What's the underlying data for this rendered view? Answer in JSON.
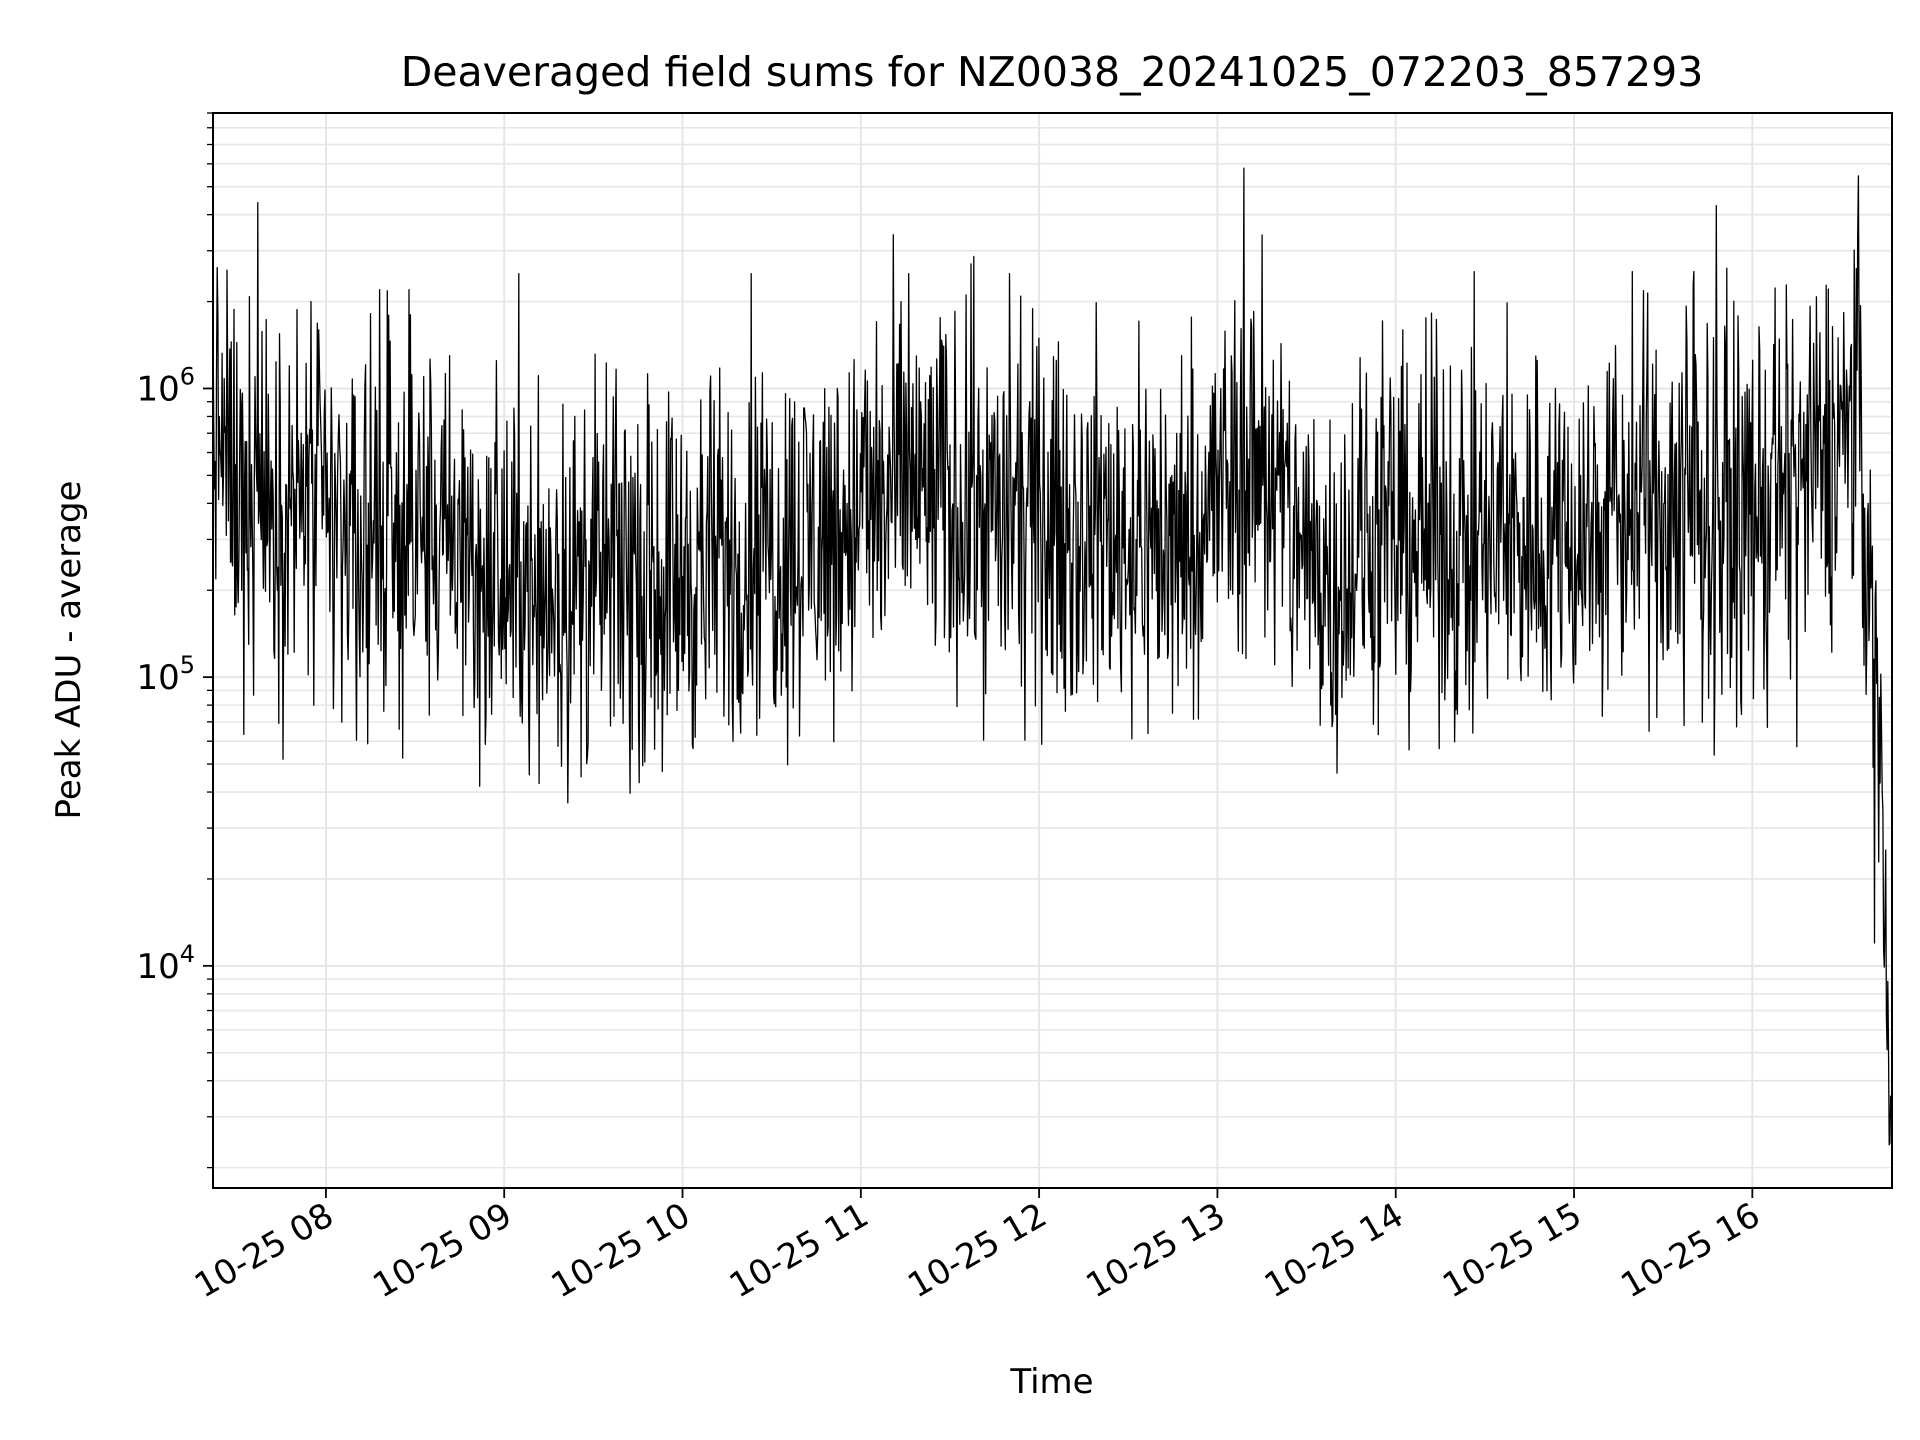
{
  "chart_data": {
    "type": "line",
    "title": "Deaveraged field sums for NZ0038_20241025_072203_857293",
    "xlabel": "Time",
    "ylabel": "Peak ADU - average",
    "x_axis": {
      "kind": "datetime",
      "range": [
        "2024-10-25 07:22",
        "2024-10-25 16:47"
      ],
      "ticks": [
        {
          "value": "2024-10-25 08:00",
          "label": "10-25 08"
        },
        {
          "value": "2024-10-25 09:00",
          "label": "10-25 09"
        },
        {
          "value": "2024-10-25 10:00",
          "label": "10-25 10"
        },
        {
          "value": "2024-10-25 11:00",
          "label": "10-25 11"
        },
        {
          "value": "2024-10-25 12:00",
          "label": "10-25 12"
        },
        {
          "value": "2024-10-25 13:00",
          "label": "10-25 13"
        },
        {
          "value": "2024-10-25 14:00",
          "label": "10-25 14"
        },
        {
          "value": "2024-10-25 15:00",
          "label": "10-25 15"
        },
        {
          "value": "2024-10-25 16:00",
          "label": "10-25 16"
        }
      ]
    },
    "y_axis": {
      "scale": "log",
      "range": [
        1700,
        9000000
      ],
      "ticks": [
        {
          "value": 10000,
          "base": "10",
          "exp": "4"
        },
        {
          "value": 100000,
          "base": "10",
          "exp": "5"
        },
        {
          "value": 1000000,
          "base": "10",
          "exp": "6"
        }
      ]
    },
    "grid": true,
    "line_color": "#000000",
    "grid_color": "#e6e6e6",
    "series": [
      {
        "x": [
          "2024-10-25 07:22",
          "2024-10-25 07:30",
          "2024-10-25 07:37",
          "2024-10-25 07:45",
          "2024-10-25 07:52",
          "2024-10-25 08:00",
          "2024-10-25 08:10",
          "2024-10-25 08:20",
          "2024-10-25 08:30",
          "2024-10-25 08:40",
          "2024-10-25 08:50",
          "2024-10-25 09:00",
          "2024-10-25 09:10",
          "2024-10-25 09:20",
          "2024-10-25 09:30",
          "2024-10-25 09:40",
          "2024-10-25 09:50",
          "2024-10-25 10:00",
          "2024-10-25 10:10",
          "2024-10-25 10:20",
          "2024-10-25 10:30",
          "2024-10-25 10:40",
          "2024-10-25 10:50",
          "2024-10-25 11:00",
          "2024-10-25 11:10",
          "2024-10-25 11:20",
          "2024-10-25 11:30",
          "2024-10-25 11:40",
          "2024-10-25 11:50",
          "2024-10-25 12:00",
          "2024-10-25 12:10",
          "2024-10-25 12:20",
          "2024-10-25 12:30",
          "2024-10-25 12:40",
          "2024-10-25 12:50",
          "2024-10-25 13:00",
          "2024-10-25 13:10",
          "2024-10-25 13:20",
          "2024-10-25 13:30",
          "2024-10-25 13:40",
          "2024-10-25 13:50",
          "2024-10-25 14:00",
          "2024-10-25 14:10",
          "2024-10-25 14:20",
          "2024-10-25 14:30",
          "2024-10-25 14:40",
          "2024-10-25 14:50",
          "2024-10-25 15:00",
          "2024-10-25 15:10",
          "2024-10-25 15:20",
          "2024-10-25 15:30",
          "2024-10-25 15:40",
          "2024-10-25 15:50",
          "2024-10-25 16:00",
          "2024-10-25 16:10",
          "2024-10-25 16:20",
          "2024-10-25 16:30",
          "2024-10-25 16:36",
          "2024-10-25 16:40",
          "2024-10-25 16:43",
          "2024-10-25 16:47"
        ],
        "y": [
          800000,
          450000,
          420000,
          350000,
          400000,
          330000,
          320000,
          300000,
          340000,
          280000,
          240000,
          210000,
          220000,
          200000,
          220000,
          230000,
          210000,
          230000,
          240000,
          260000,
          280000,
          300000,
          320000,
          380000,
          420000,
          450000,
          400000,
          380000,
          350000,
          340000,
          330000,
          320000,
          310000,
          300000,
          320000,
          420000,
          560000,
          420000,
          260000,
          240000,
          280000,
          300000,
          320000,
          290000,
          280000,
          300000,
          310000,
          320000,
          350000,
          380000,
          400000,
          380000,
          360000,
          380000,
          420000,
          500000,
          700000,
          700000,
          180000,
          60000,
          2500
        ],
        "peaks": [
          {
            "x": "2024-10-25 07:37",
            "y": 4400000
          },
          {
            "x": "2024-10-25 07:55",
            "y": 2000000
          },
          {
            "x": "2024-10-25 08:18",
            "y": 2200000
          },
          {
            "x": "2024-10-25 08:28",
            "y": 2200000
          },
          {
            "x": "2024-10-25 09:05",
            "y": 2500000
          },
          {
            "x": "2024-10-25 10:23",
            "y": 2500000
          },
          {
            "x": "2024-10-25 11:16",
            "y": 2500000
          },
          {
            "x": "2024-10-25 11:37",
            "y": 2700000
          },
          {
            "x": "2024-10-25 11:50",
            "y": 2500000
          },
          {
            "x": "2024-10-25 13:09",
            "y": 5800000
          },
          {
            "x": "2024-10-25 13:15",
            "y": 3400000
          },
          {
            "x": "2024-10-25 15:40",
            "y": 2300000
          },
          {
            "x": "2024-10-25 15:48",
            "y": 4300000
          },
          {
            "x": "2024-10-25 16:35",
            "y": 2600000
          }
        ],
        "dips": [
          {
            "x": "2024-10-25 07:34",
            "y": 130000
          },
          {
            "x": "2024-10-25 08:55",
            "y": 85000
          },
          {
            "x": "2024-10-25 10:26",
            "y": 72000
          },
          {
            "x": "2024-10-25 12:45",
            "y": 75000
          },
          {
            "x": "2024-10-25 13:38",
            "y": 80000
          },
          {
            "x": "2024-10-25 14:26",
            "y": 64000
          },
          {
            "x": "2024-10-25 15:37",
            "y": 68000
          },
          {
            "x": "2024-10-25 16:05",
            "y": 67000
          },
          {
            "x": "2024-10-25 16:41",
            "y": 12000
          },
          {
            "x": "2024-10-25 16:46",
            "y": 2400
          }
        ]
      }
    ]
  }
}
